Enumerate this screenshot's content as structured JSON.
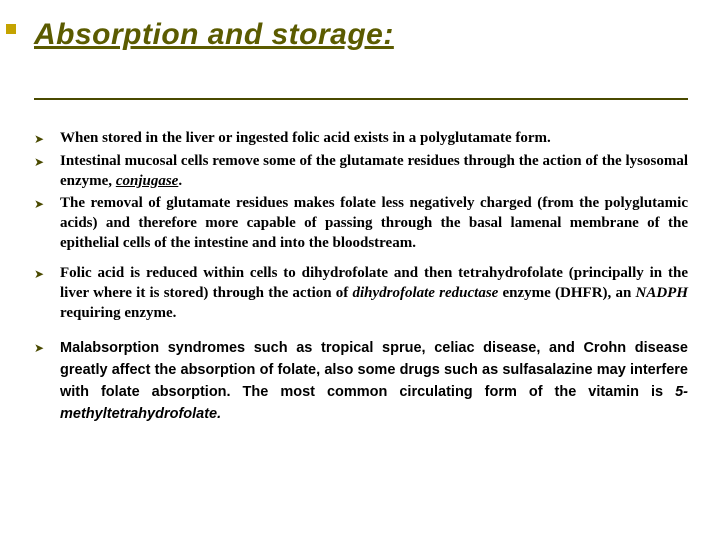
{
  "title": "Absorption and storage:",
  "colors": {
    "accent": "#c4a300",
    "title": "#5b5b00",
    "divider": "#4a4a00",
    "bullet": "#4a4a00",
    "text": "#000000",
    "background": "#ffffff"
  },
  "bullets": [
    {
      "text": "When stored in the liver or ingested folic acid exists in a polyglutamate form.",
      "bold_all": true
    },
    {
      "text": "Intestinal mucosal cells remove some of the glutamate residues through the action of the lysosomal enzyme, ",
      "emph": "conjugase",
      "suffix": ".",
      "bold_all": true
    },
    {
      "text": "The removal of glutamate residues makes folate less negatively charged (from the polyglutamic acids) and therefore more capable of passing through the basal lamenal membrane of the epithelial cells of the intestine and into the bloodstream.",
      "bold_all": true
    },
    {
      "prefix": "Folic acid is reduced ",
      "mid1": "within cells to dihydrofolate and then tetrahydrofolate (principally in the liver where it is stored) through the action of ",
      "emph": "dihydrofolate reductase",
      "mid2": " enzyme (DHFR), an ",
      "emph2": "NADPH",
      "suffix": "  requiring enzyme.",
      "bold_all": true
    },
    {
      "text": "Malabsorption syndromes such as tropical sprue, celiac disease, and Crohn disease greatly affect the absorption of folate, also some drugs such as sulfasalazine may interfere with folate absorption. The most common circulating form of the vitamin is ",
      "emph": "5-methyltetrahydrofolate.",
      "last": true
    }
  ]
}
